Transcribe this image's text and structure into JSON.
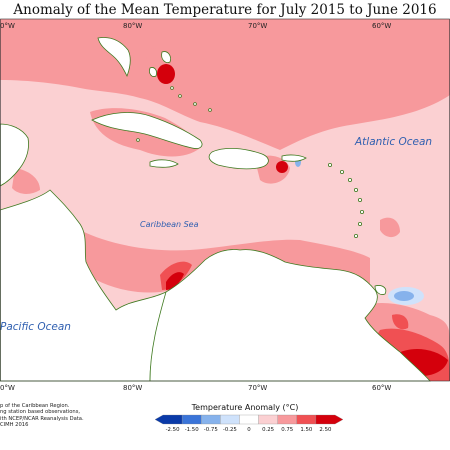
{
  "title": "Anomaly of the Mean Temperature for July 2015 to June 2016",
  "longitude_labels": {
    "top": [
      "80°W",
      "70°W",
      "60°W"
    ],
    "bottom": [
      "80°W",
      "70°W",
      "60°W"
    ],
    "edge_top": "0°W",
    "edge_bottom": "0°W"
  },
  "ocean_labels": {
    "atlantic": "Atlantic Ocean",
    "caribbean": "Caribbean Sea",
    "pacific": "Pacific Ocean"
  },
  "credits": [
    "p of the Caribbean Region.",
    "ng station based observations,",
    "ith NCEP/NCAR Reanalysis Data.",
    "CIMH 2016"
  ],
  "legend": {
    "title": "Temperature Anomaly (°C)",
    "ticks": [
      "-2.50",
      "-1.50",
      "-0.75",
      "-0.25",
      "0",
      "0.25",
      "0.75",
      "1.50",
      "2.50"
    ],
    "colors": [
      "#0a3aa8",
      "#3a74d8",
      "#86b2ec",
      "#cfe2fb",
      "#ffffff",
      "#fbd0d2",
      "#f7999c",
      "#f05053",
      "#d4000c"
    ]
  },
  "colors": {
    "land_fill": "#ffffff",
    "coastline": "#3f7a20",
    "anomaly_low": "#fbd0d2",
    "anomaly_mid": "#f7999c",
    "anomaly_high": "#f05053",
    "anomaly_max": "#d4000c",
    "anomaly_cool": "#86b2ec"
  }
}
